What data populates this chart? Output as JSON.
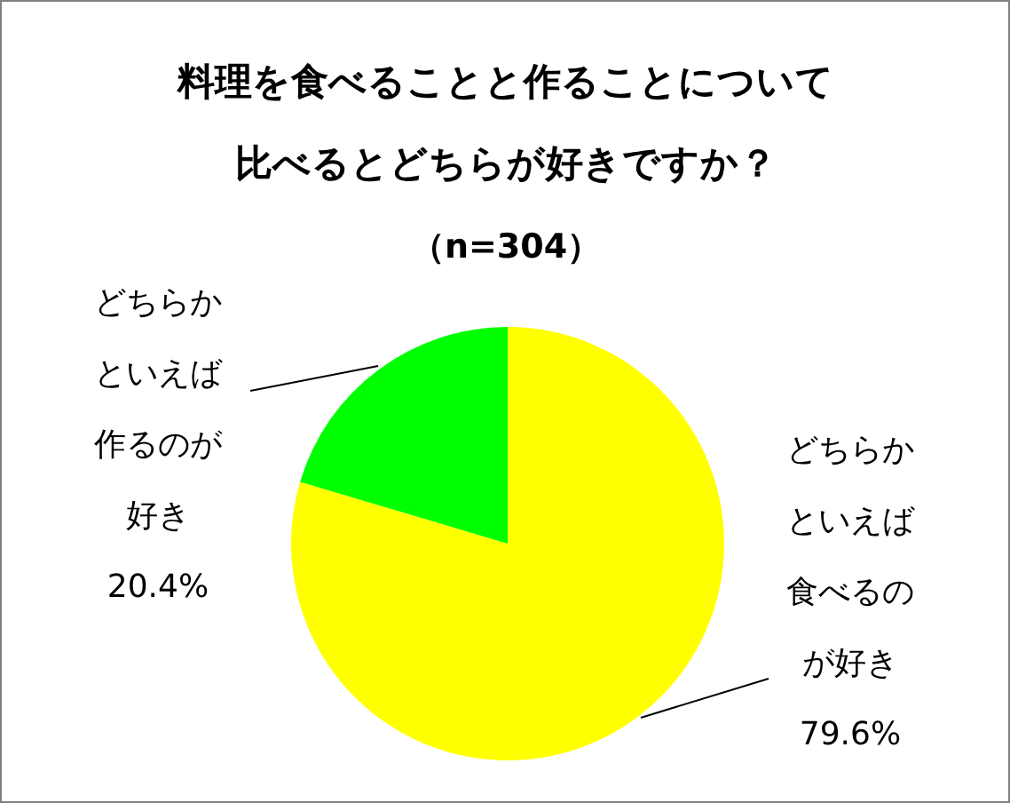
{
  "chart_data": {
    "type": "pie",
    "title": "料理を食べることと作ることについて",
    "subtitle": "比べるとどちらが好きですか？",
    "annotations": [
      "（n=304）"
    ],
    "categories": [
      "どちらかといえば食べるのが好き",
      "どちらかといえば作るのが好き"
    ],
    "values": [
      79.6,
      20.4
    ],
    "value_labels": [
      "79.6%",
      "20.4%"
    ],
    "colors": [
      "#ffff00",
      "#00ff00"
    ]
  }
}
